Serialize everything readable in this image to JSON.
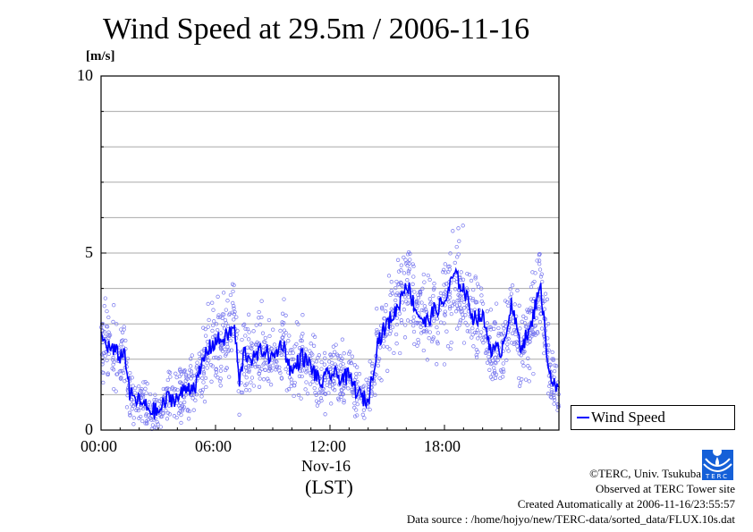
{
  "chart_data": {
    "type": "line",
    "title": "Wind Speed at 29.5m / 2006-11-16",
    "ylabel": "[m/s]",
    "xlabel": "Nov-16",
    "xlabel2": "(LST)",
    "ylim": [
      0,
      10
    ],
    "xlim_hours": [
      0,
      24
    ],
    "yticks": [
      {
        "v": 0,
        "label": "0"
      },
      {
        "v": 5,
        "label": "5"
      },
      {
        "v": 10,
        "label": "10"
      }
    ],
    "xticks": [
      {
        "h": 0,
        "label": "00:00"
      },
      {
        "h": 6,
        "label": "06:00"
      },
      {
        "h": 12,
        "label": "12:00"
      },
      {
        "h": 18,
        "label": "18:00"
      }
    ],
    "grid": "horizontal every 1 m/s",
    "legend": {
      "placement": "right",
      "entries": [
        "Wind Speed"
      ]
    },
    "series": [
      {
        "name": "Wind Speed",
        "color": "#0000ff",
        "scatter_color": "#7777ee",
        "x_hours": [
          0,
          0.5,
          1,
          1.25,
          1.5,
          2,
          2.5,
          3,
          3.5,
          4,
          4.5,
          5,
          5.5,
          6,
          6.5,
          7,
          7.25,
          7.5,
          8,
          8.5,
          9,
          9.5,
          10,
          10.5,
          11,
          11.5,
          12,
          12.5,
          13,
          13.5,
          14,
          14.5,
          15,
          15.5,
          16,
          16.5,
          17,
          17.5,
          18,
          18.5,
          19,
          19.5,
          20,
          20.5,
          21,
          21.5,
          22,
          22.5,
          23,
          23.5,
          24
        ],
        "values": [
          2.6,
          2.3,
          2.1,
          2.2,
          1.0,
          0.8,
          0.6,
          0.5,
          0.9,
          0.9,
          1.2,
          1.3,
          2.2,
          2.5,
          2.6,
          2.9,
          1.3,
          2.2,
          2.0,
          2.3,
          2.0,
          2.5,
          1.6,
          2.1,
          1.8,
          1.3,
          1.6,
          1.5,
          1.5,
          1.0,
          0.8,
          2.5,
          3.0,
          3.4,
          4.2,
          3.4,
          3.0,
          3.4,
          3.6,
          4.4,
          4.0,
          3.2,
          3.2,
          2.2,
          2.3,
          3.5,
          2.4,
          2.8,
          4.2,
          1.6,
          1.0
        ]
      }
    ]
  },
  "footer": {
    "copyright": "©TERC, Univ. Tsukuba",
    "observed": "Observed at TERC Tower site",
    "created": "Created Automatically at 2006-11-16/23:55:57",
    "source": "Data source : /home/hojyo/new/TERC-data/sorted_data/FLUX.10s.dat",
    "logo_text": "TERC"
  }
}
